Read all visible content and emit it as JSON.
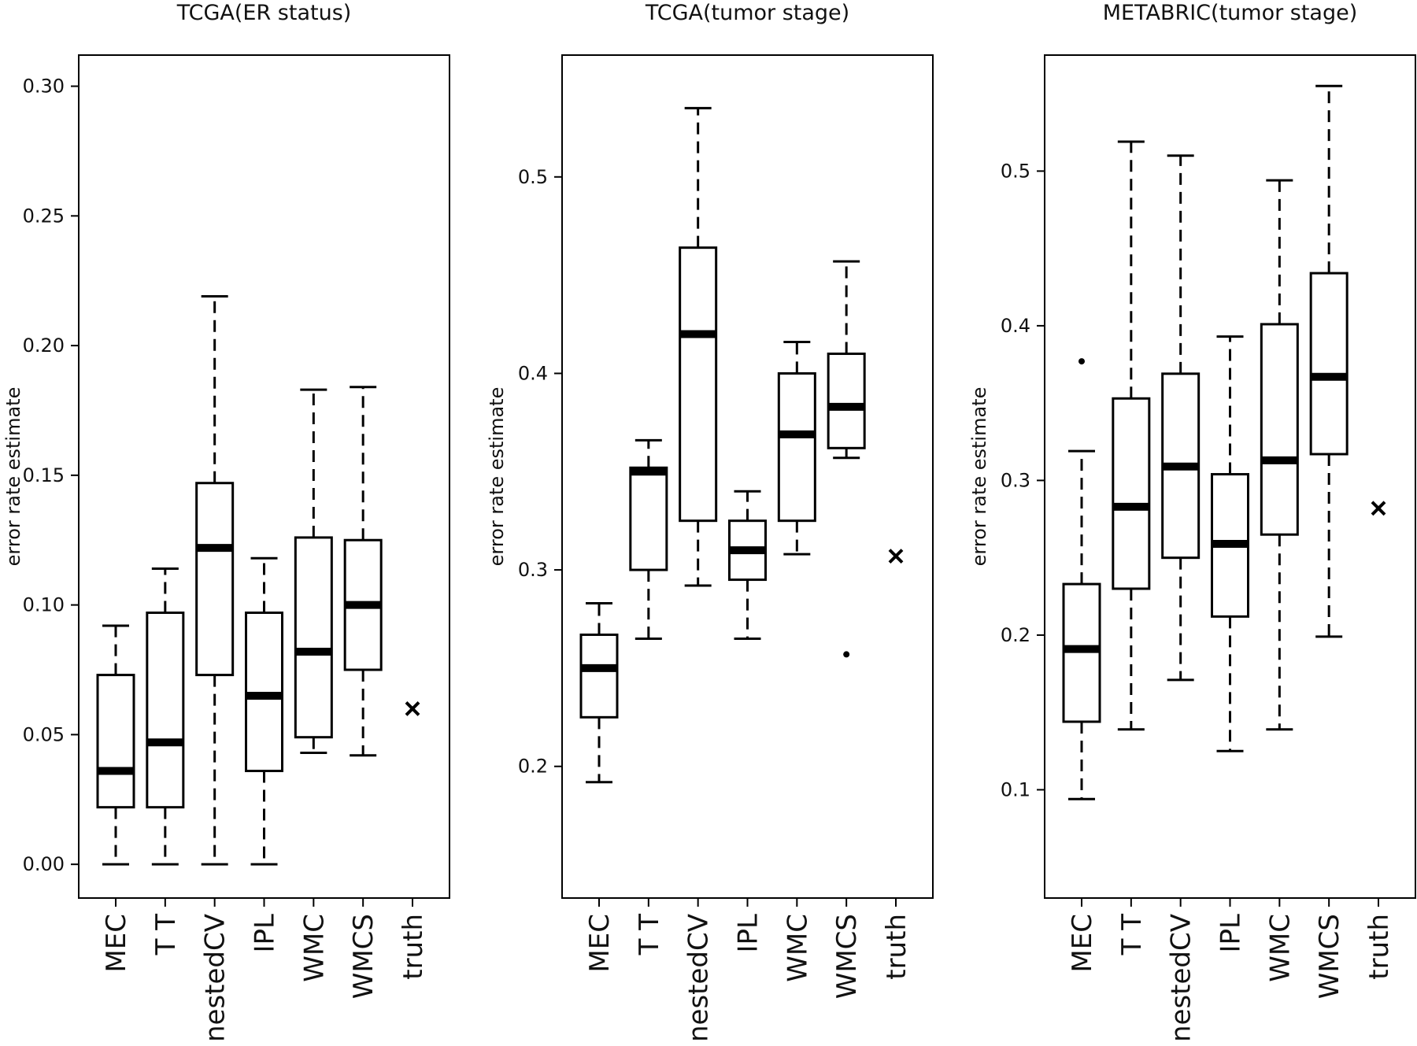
{
  "chart_data": [
    {
      "type": "boxplot",
      "title": "TCGA(ER status)",
      "ylabel": "error rate estimate",
      "ylim": [
        -0.013,
        0.312
      ],
      "yticks": [
        0.0,
        0.05,
        0.1,
        0.15,
        0.2,
        0.25,
        0.3
      ],
      "ytick_labels": [
        "0.00",
        "0.05",
        "0.10",
        "0.15",
        "0.20",
        "0.25",
        "0.30"
      ],
      "categories": [
        "MEC",
        "T T",
        "nestedCV",
        "IPL",
        "WMC",
        "WMCS",
        "truth"
      ],
      "boxes": [
        {
          "label": "MEC",
          "whisker_low": 0.0,
          "q1": 0.022,
          "median": 0.036,
          "q3": 0.073,
          "whisker_high": 0.092,
          "outliers": []
        },
        {
          "label": "T T",
          "whisker_low": 0.0,
          "q1": 0.022,
          "median": 0.047,
          "q3": 0.097,
          "whisker_high": 0.114,
          "outliers": []
        },
        {
          "label": "nestedCV",
          "whisker_low": 0.0,
          "q1": 0.073,
          "median": 0.122,
          "q3": 0.147,
          "whisker_high": 0.219,
          "outliers": []
        },
        {
          "label": "IPL",
          "whisker_low": 0.0,
          "q1": 0.036,
          "median": 0.065,
          "q3": 0.097,
          "whisker_high": 0.118,
          "outliers": []
        },
        {
          "label": "WMC",
          "whisker_low": 0.043,
          "q1": 0.049,
          "median": 0.082,
          "q3": 0.126,
          "whisker_high": 0.183,
          "outliers": []
        },
        {
          "label": "WMCS",
          "whisker_low": 0.042,
          "q1": 0.075,
          "median": 0.1,
          "q3": 0.125,
          "whisker_high": 0.184,
          "outliers": []
        }
      ],
      "truth": 0.06
    },
    {
      "type": "boxplot",
      "title": "TCGA(tumor stage)",
      "ylabel": "error rate estimate",
      "ylim": [
        0.133,
        0.562
      ],
      "yticks": [
        0.2,
        0.3,
        0.4,
        0.5
      ],
      "ytick_labels": [
        "0.2",
        "0.3",
        "0.4",
        "0.5"
      ],
      "categories": [
        "MEC",
        "T T",
        "nestedCV",
        "IPL",
        "WMC",
        "WMCS",
        "truth"
      ],
      "boxes": [
        {
          "label": "MEC",
          "whisker_low": 0.192,
          "q1": 0.225,
          "median": 0.25,
          "q3": 0.267,
          "whisker_high": 0.283,
          "outliers": []
        },
        {
          "label": "T T",
          "whisker_low": 0.265,
          "q1": 0.3,
          "median": 0.35,
          "q3": 0.352,
          "whisker_high": 0.366,
          "outliers": []
        },
        {
          "label": "nestedCV",
          "whisker_low": 0.292,
          "q1": 0.325,
          "median": 0.42,
          "q3": 0.464,
          "whisker_high": 0.535,
          "outliers": []
        },
        {
          "label": "IPL",
          "whisker_low": 0.265,
          "q1": 0.295,
          "median": 0.31,
          "q3": 0.325,
          "whisker_high": 0.34,
          "outliers": []
        },
        {
          "label": "WMC",
          "whisker_low": 0.308,
          "q1": 0.325,
          "median": 0.369,
          "q3": 0.4,
          "whisker_high": 0.416,
          "outliers": []
        },
        {
          "label": "WMCS",
          "whisker_low": 0.357,
          "q1": 0.362,
          "median": 0.383,
          "q3": 0.41,
          "whisker_high": 0.457,
          "outliers": [
            0.257
          ]
        }
      ],
      "truth": 0.307
    },
    {
      "type": "boxplot",
      "title": "METABRIC(tumor stage)",
      "ylabel": "error rate estimate",
      "ylim": [
        0.03,
        0.575
      ],
      "yticks": [
        0.1,
        0.2,
        0.3,
        0.4,
        0.5
      ],
      "ytick_labels": [
        "0.1",
        "0.2",
        "0.3",
        "0.4",
        "0.5"
      ],
      "categories": [
        "MEC",
        "T T",
        "nestedCV",
        "IPL",
        "WMC",
        "WMCS",
        "truth"
      ],
      "boxes": [
        {
          "label": "MEC",
          "whisker_low": 0.094,
          "q1": 0.144,
          "median": 0.191,
          "q3": 0.233,
          "whisker_high": 0.319,
          "outliers": [
            0.377
          ]
        },
        {
          "label": "T T",
          "whisker_low": 0.139,
          "q1": 0.23,
          "median": 0.283,
          "q3": 0.353,
          "whisker_high": 0.519,
          "outliers": []
        },
        {
          "label": "nestedCV",
          "whisker_low": 0.171,
          "q1": 0.25,
          "median": 0.309,
          "q3": 0.369,
          "whisker_high": 0.51,
          "outliers": []
        },
        {
          "label": "IPL",
          "whisker_low": 0.125,
          "q1": 0.212,
          "median": 0.259,
          "q3": 0.304,
          "whisker_high": 0.393,
          "outliers": []
        },
        {
          "label": "WMC",
          "whisker_low": 0.139,
          "q1": 0.265,
          "median": 0.313,
          "q3": 0.401,
          "whisker_high": 0.494,
          "outliers": []
        },
        {
          "label": "WMCS",
          "whisker_low": 0.199,
          "q1": 0.317,
          "median": 0.367,
          "q3": 0.434,
          "whisker_high": 0.555,
          "outliers": []
        }
      ],
      "truth": 0.282
    }
  ],
  "colors": {
    "stroke": "#000000",
    "text": "#111111",
    "background": "#ffffff"
  }
}
